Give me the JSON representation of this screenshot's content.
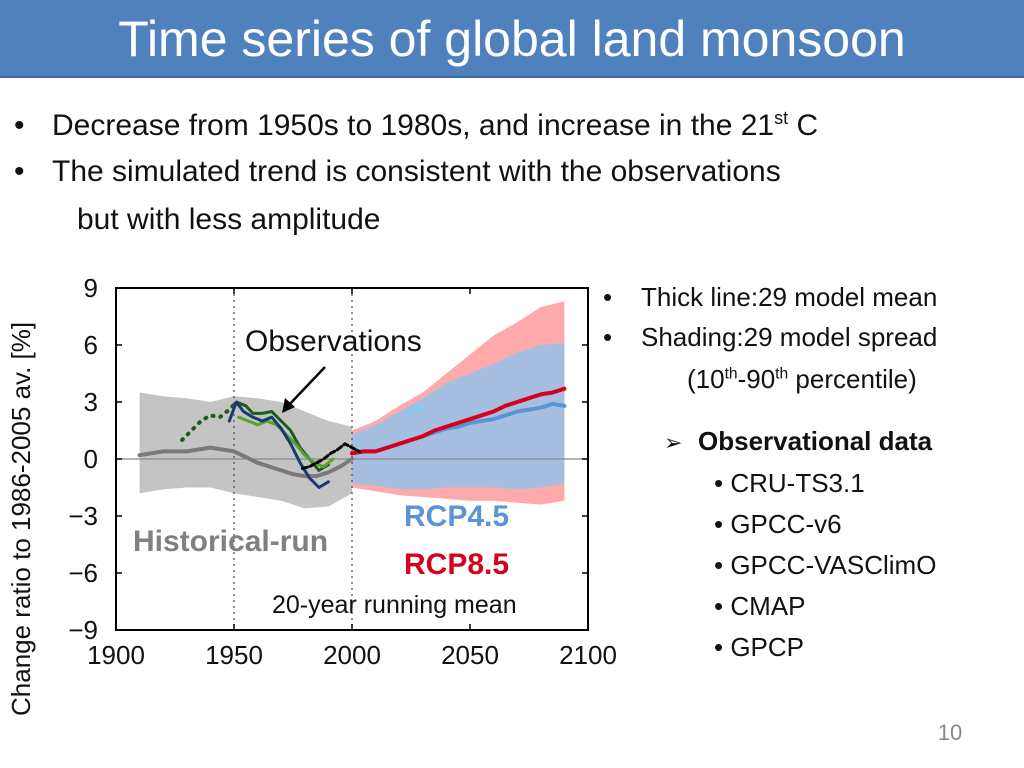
{
  "title": "Time series of global land monsoon",
  "bullets": [
    {
      "text": "Decrease from 1950s to 1980s, and increase in the 21",
      "sup": "st",
      "tail": " C"
    },
    {
      "text": "The simulated trend is consistent with the observations"
    },
    {
      "text": "but with less amplitude"
    }
  ],
  "legend_notes": {
    "thick_line_label": "Thick line",
    "thick_line_value": "29 model mean",
    "shading_label": "Shading",
    "shading_value": "29 model spread",
    "percentile_open": "(10",
    "percentile_sup1": "th",
    "percentile_mid": "-90",
    "percentile_sup2": "th",
    "percentile_close": " percentile)"
  },
  "obs_header": "Observational data",
  "obs_datasets": [
    "CRU-TS3.1",
    "GPCC-v6",
    "GPCC-VASClimO",
    "CMAP",
    "GPCP"
  ],
  "page_number": "10",
  "colors": {
    "title_bg": "#4f81bd",
    "historical_shade": "#c4c4c4",
    "historical_line": "#7a7a7a",
    "rcp45_shade": "#a6bfe0",
    "rcp45_line": "#5b93d4",
    "rcp85_shade": "#ffaaaa",
    "rcp85_line": "#d6001c",
    "obs_dark_green": "#1e5c1e",
    "obs_light_green": "#5aa02c",
    "obs_navy": "#1a3a6e",
    "obs_black": "#000000",
    "obs_cyan": "#7fd0f0"
  },
  "chart_data": {
    "type": "line",
    "title": "",
    "xlabel": "",
    "ylabel": "Change ratio to 1986-2005 av. [%]",
    "xlim": [
      1900,
      2100
    ],
    "ylim": [
      -9,
      9
    ],
    "xticks": [
      1900,
      1950,
      2000,
      2050,
      2100
    ],
    "yticks": [
      9,
      6,
      3,
      0,
      -3,
      -6,
      -9
    ],
    "ytick_labels": [
      "9",
      "6",
      "3",
      "0",
      "−3",
      "−6",
      "−9"
    ],
    "vertical_dotted_lines": [
      1950,
      2000
    ],
    "zero_line": true,
    "annotations": {
      "observations": "Observations",
      "historical": "Historical-run",
      "rcp45": "RCP4.5",
      "rcp85": "RCP8.5",
      "running_mean": "20-year running mean"
    },
    "historical_spread": {
      "x": [
        1910,
        1920,
        1930,
        1940,
        1950,
        1960,
        1970,
        1980,
        1990,
        2000
      ],
      "upper": [
        3.5,
        3.3,
        3.2,
        3.0,
        3.3,
        3.2,
        3.0,
        2.5,
        2.0,
        1.7
      ],
      "lower": [
        -1.8,
        -1.6,
        -1.5,
        -1.5,
        -1.8,
        -2.0,
        -2.2,
        -2.6,
        -2.5,
        -1.8
      ]
    },
    "rcp85_spread": {
      "x": [
        2000,
        2010,
        2020,
        2030,
        2040,
        2050,
        2060,
        2070,
        2080,
        2090
      ],
      "upper": [
        1.5,
        2.0,
        2.8,
        3.5,
        4.5,
        5.5,
        6.5,
        7.2,
        8.0,
        8.3
      ],
      "lower": [
        -1.5,
        -1.7,
        -1.9,
        -2.0,
        -2.1,
        -2.2,
        -2.2,
        -2.3,
        -2.4,
        -2.2
      ]
    },
    "rcp45_spread": {
      "x": [
        2000,
        2010,
        2020,
        2030,
        2040,
        2050,
        2060,
        2070,
        2080,
        2090
      ],
      "upper": [
        1.3,
        1.8,
        2.5,
        3.2,
        4.0,
        4.5,
        5.0,
        5.6,
        6.0,
        6.1
      ],
      "lower": [
        -1.3,
        -1.4,
        -1.6,
        -1.6,
        -1.5,
        -1.5,
        -1.5,
        -1.6,
        -1.5,
        -1.3
      ]
    },
    "series": [
      {
        "key": "historical",
        "name": "Historical-run",
        "x": [
          1910,
          1915,
          1920,
          1925,
          1930,
          1935,
          1940,
          1945,
          1950,
          1955,
          1960,
          1965,
          1970,
          1975,
          1980,
          1985,
          1990,
          1995,
          2000
        ],
        "y": [
          0.2,
          0.3,
          0.4,
          0.4,
          0.4,
          0.5,
          0.6,
          0.5,
          0.4,
          0.1,
          -0.2,
          -0.4,
          -0.6,
          -0.8,
          -0.9,
          -0.9,
          -0.7,
          -0.4,
          0.0
        ]
      },
      {
        "key": "rcp85",
        "name": "RCP8.5",
        "x": [
          2000,
          2005,
          2010,
          2015,
          2020,
          2025,
          2030,
          2035,
          2040,
          2045,
          2050,
          2055,
          2060,
          2065,
          2070,
          2075,
          2080,
          2085,
          2090
        ],
        "y": [
          0.3,
          0.4,
          0.4,
          0.6,
          0.8,
          1.0,
          1.2,
          1.5,
          1.7,
          1.9,
          2.1,
          2.3,
          2.5,
          2.8,
          3.0,
          3.2,
          3.4,
          3.5,
          3.7
        ]
      },
      {
        "key": "rcp45",
        "name": "RCP4.5",
        "x": [
          2000,
          2005,
          2010,
          2015,
          2020,
          2025,
          2030,
          2035,
          2040,
          2045,
          2050,
          2055,
          2060,
          2065,
          2070,
          2075,
          2080,
          2085,
          2090
        ],
        "y": [
          0.3,
          0.4,
          0.4,
          0.6,
          0.8,
          1.0,
          1.2,
          1.4,
          1.6,
          1.7,
          1.9,
          2.0,
          2.1,
          2.3,
          2.5,
          2.6,
          2.7,
          2.9,
          2.8
        ]
      },
      {
        "key": "obs_dark_green",
        "name": "",
        "style": "dotted-solid",
        "x": [
          1928,
          1932,
          1936,
          1940,
          1944,
          1948,
          1951,
          1955,
          1958,
          1962,
          1966,
          1970,
          1974,
          1978,
          1982,
          1986,
          1990
        ],
        "y": [
          1.0,
          1.5,
          2.0,
          2.3,
          2.2,
          2.6,
          3.0,
          2.8,
          2.4,
          2.4,
          2.5,
          2.0,
          1.5,
          0.6,
          0.0,
          -0.6,
          -0.3
        ]
      },
      {
        "key": "obs_light_green",
        "name": "",
        "x": [
          1952,
          1956,
          1960,
          1964,
          1968,
          1972,
          1976,
          1980,
          1984,
          1988,
          1992
        ],
        "y": [
          2.2,
          2.0,
          1.8,
          2.0,
          1.8,
          1.3,
          0.8,
          0.2,
          -0.2,
          -0.4,
          0.0
        ]
      },
      {
        "key": "obs_navy",
        "name": "",
        "x": [
          1948,
          1951,
          1954,
          1958,
          1962,
          1966,
          1970,
          1974,
          1978,
          1982,
          1986,
          1990
        ],
        "y": [
          2.0,
          3.0,
          2.5,
          2.2,
          2.0,
          2.2,
          1.6,
          0.8,
          -0.2,
          -1.0,
          -1.5,
          -1.2
        ]
      },
      {
        "key": "obs_black",
        "name": "",
        "x": [
          1979,
          1982,
          1985,
          1988,
          1991,
          1994,
          1997,
          2000,
          2003
        ],
        "y": [
          -0.5,
          -0.4,
          -0.2,
          0.0,
          0.3,
          0.5,
          0.8,
          0.6,
          0.4
        ]
      },
      {
        "key": "obs_cyan",
        "name": "",
        "x": [
          2024,
          2026,
          2028,
          2030
        ],
        "y": [
          2.3,
          2.6,
          2.8,
          2.5
        ]
      }
    ]
  }
}
